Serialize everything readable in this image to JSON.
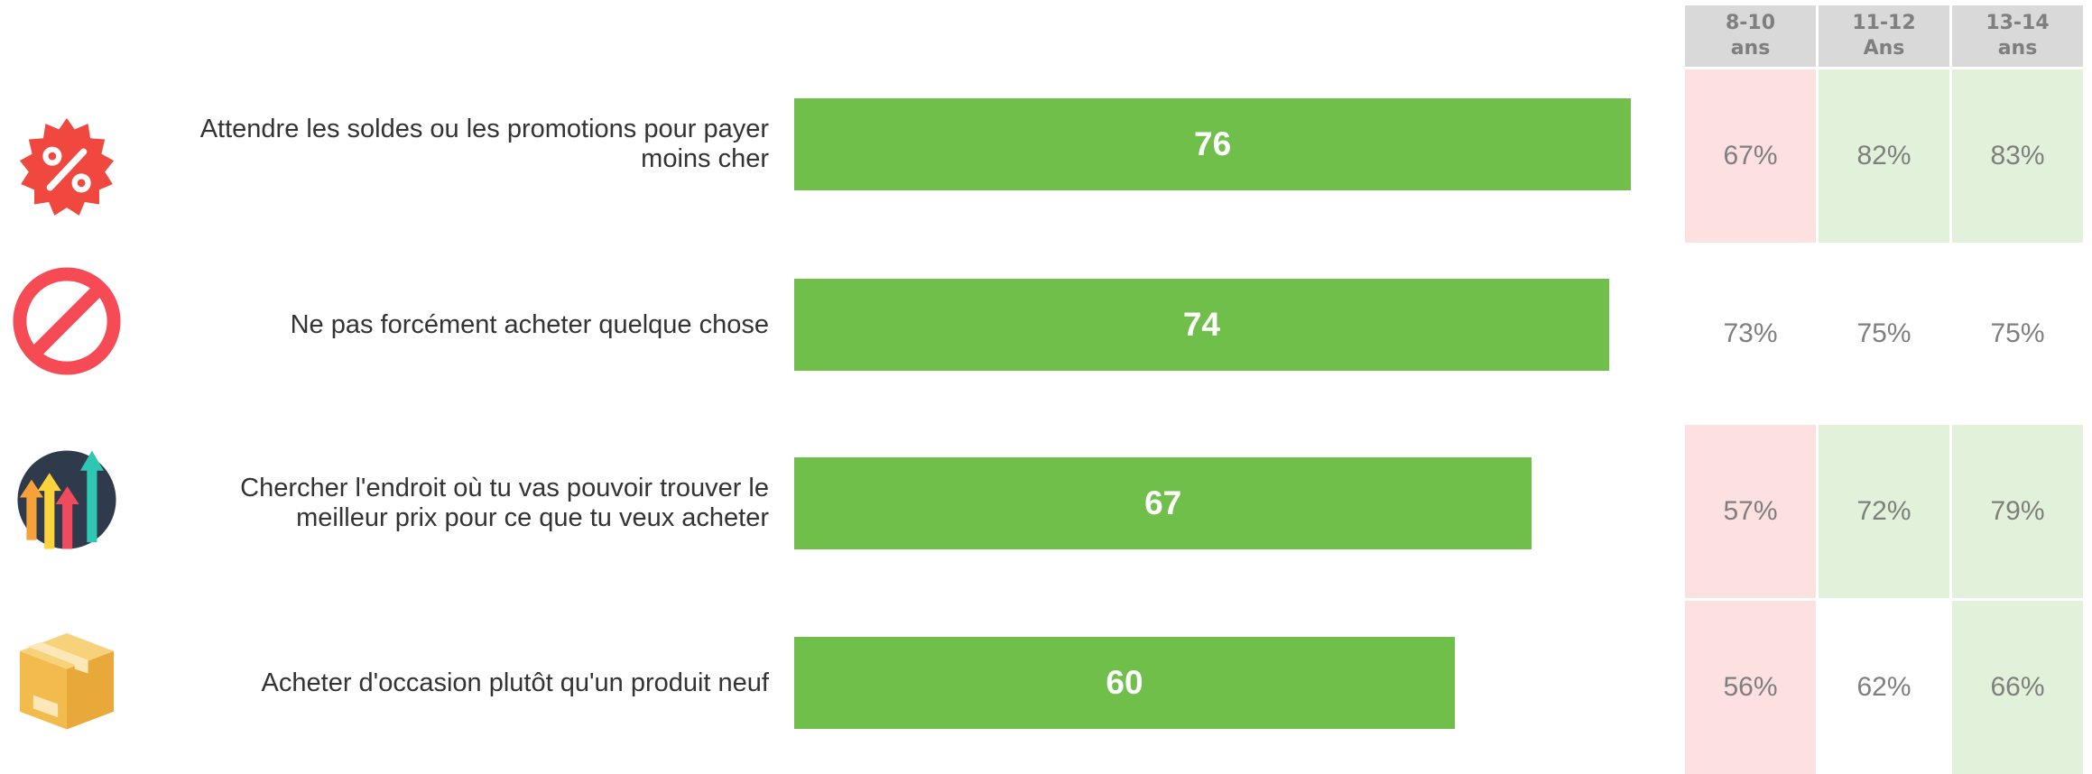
{
  "chart_data": {
    "type": "bar",
    "orientation": "horizontal",
    "categories": [
      "Attendre les soldes ou les promotions pour payer moins cher",
      "Ne pas forcément acheter quelque chose",
      "Chercher l'endroit où tu vas pouvoir trouver le meilleur prix pour ce que tu veux acheter",
      "Acheter d'occasion plutôt qu'un produit neuf"
    ],
    "values": [
      76,
      74,
      67,
      60
    ],
    "xlim": [
      0,
      100
    ],
    "grid": false,
    "bar_color": "#70bf4b",
    "icons": [
      "percent-badge-icon",
      "prohibited-icon",
      "rising-arrows-icon",
      "cardboard-box-icon"
    ]
  },
  "age_table": {
    "headers": [
      {
        "line1": "8-10",
        "line2": "ans"
      },
      {
        "line1": "11-12",
        "line2": "Ans"
      },
      {
        "line1": "13-14",
        "line2": "ans"
      }
    ],
    "rows": [
      [
        {
          "value": "67%",
          "status": "below"
        },
        {
          "value": "82%",
          "status": "above"
        },
        {
          "value": "83%",
          "status": "above"
        }
      ],
      [
        {
          "value": "73%",
          "status": "neutral"
        },
        {
          "value": "75%",
          "status": "neutral"
        },
        {
          "value": "75%",
          "status": "neutral"
        }
      ],
      [
        {
          "value": "57%",
          "status": "below"
        },
        {
          "value": "72%",
          "status": "above"
        },
        {
          "value": "79%",
          "status": "above"
        }
      ],
      [
        {
          "value": "56%",
          "status": "below"
        },
        {
          "value": "62%",
          "status": "neutral"
        },
        {
          "value": "66%",
          "status": "above"
        }
      ]
    ],
    "colors": {
      "below": "#fde0e0",
      "above": "#e2f2da",
      "neutral": "#ffffff",
      "header": "#d9d9d9",
      "text": "#7f7f7f"
    }
  }
}
